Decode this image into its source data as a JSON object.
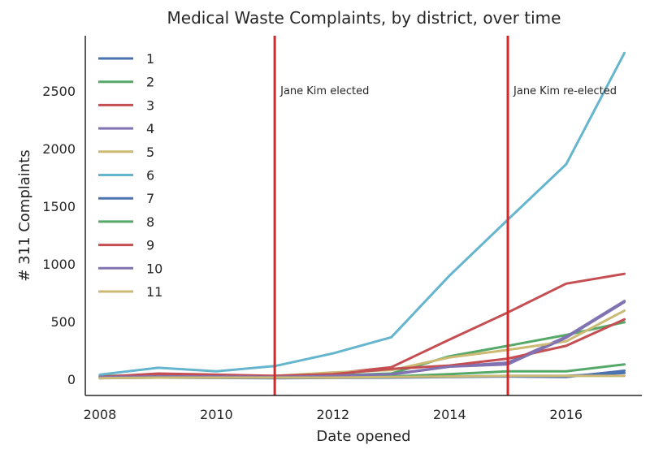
{
  "chart_data": {
    "type": "line",
    "title": "Medical Waste Complaints, by district, over time",
    "xlabel": "Date opened",
    "ylabel": "# 311 Complaints",
    "xlim": [
      2007.75,
      2017.3
    ],
    "ylim": [
      -140,
      2980
    ],
    "xticks": [
      2008,
      2010,
      2012,
      2014,
      2016
    ],
    "yticks": [
      0,
      500,
      1000,
      1500,
      2000,
      2500
    ],
    "grid": false,
    "legend": "top-left",
    "x": [
      2008,
      2009,
      2010,
      2011,
      2012,
      2013,
      2014,
      2015,
      2016,
      2017
    ],
    "series": [
      {
        "name": "1",
        "color": "#4c72b0",
        "values": [
          20,
          25,
          22,
          20,
          20,
          25,
          25,
          30,
          30,
          55
        ]
      },
      {
        "name": "2",
        "color": "#55a868",
        "values": [
          30,
          35,
          30,
          25,
          35,
          50,
          200,
          290,
          385,
          495
        ]
      },
      {
        "name": "3",
        "color": "#c44e52",
        "values": [
          25,
          35,
          30,
          30,
          50,
          105,
          345,
          580,
          830,
          915
        ]
      },
      {
        "name": "4",
        "color": "#8172b2",
        "values": [
          15,
          20,
          20,
          20,
          25,
          40,
          110,
          145,
          370,
          680
        ]
      },
      {
        "name": "5",
        "color": "#ccb974",
        "values": [
          15,
          20,
          20,
          30,
          60,
          80,
          190,
          255,
          330,
          595
        ]
      },
      {
        "name": "6",
        "color": "#64b5cd",
        "values": [
          40,
          100,
          70,
          115,
          225,
          365,
          900,
          1385,
          1865,
          2830
        ]
      },
      {
        "name": "7",
        "color": "#4c72b0",
        "values": [
          10,
          15,
          12,
          10,
          12,
          15,
          20,
          25,
          20,
          75
        ]
      },
      {
        "name": "8",
        "color": "#55a868",
        "values": [
          20,
          25,
          22,
          20,
          22,
          25,
          45,
          70,
          70,
          130
        ]
      },
      {
        "name": "9",
        "color": "#c44e52",
        "values": [
          20,
          50,
          40,
          30,
          45,
          90,
          120,
          180,
          290,
          520
        ]
      },
      {
        "name": "10",
        "color": "#8172b2",
        "values": [
          20,
          25,
          25,
          20,
          30,
          45,
          110,
          130,
          360,
          670
        ]
      },
      {
        "name": "11",
        "color": "#ccb974",
        "values": [
          10,
          15,
          15,
          15,
          15,
          20,
          25,
          30,
          30,
          30
        ]
      }
    ],
    "vlines": [
      {
        "x": 2011,
        "color": "#d62728",
        "label": "Jane Kim elected"
      },
      {
        "x": 2015,
        "color": "#d62728",
        "label": "Jane Kim re-elected"
      }
    ]
  }
}
